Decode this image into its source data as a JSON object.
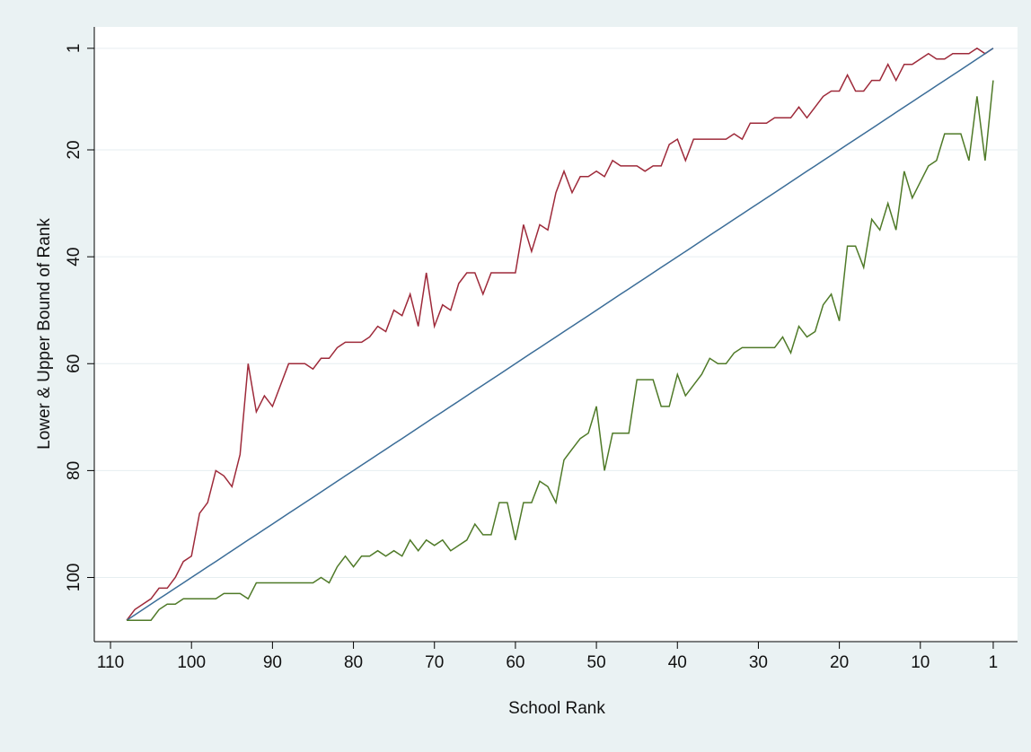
{
  "chart_data": {
    "type": "line",
    "x_label": "School Rank",
    "y_label": "Lower & Upper Bound of Rank",
    "x": [
      108,
      107,
      106,
      105,
      104,
      103,
      102,
      101,
      100,
      99,
      98,
      97,
      96,
      95,
      94,
      93,
      92,
      91,
      90,
      89,
      88,
      87,
      86,
      85,
      84,
      83,
      82,
      81,
      80,
      79,
      78,
      77,
      76,
      75,
      74,
      73,
      72,
      71,
      70,
      69,
      68,
      67,
      66,
      65,
      64,
      63,
      62,
      61,
      60,
      59,
      58,
      57,
      56,
      55,
      54,
      53,
      52,
      51,
      50,
      49,
      48,
      47,
      46,
      45,
      44,
      43,
      42,
      41,
      40,
      39,
      38,
      37,
      36,
      35,
      34,
      33,
      32,
      31,
      30,
      29,
      28,
      27,
      26,
      25,
      24,
      23,
      22,
      21,
      20,
      19,
      18,
      17,
      16,
      15,
      14,
      13,
      12,
      11,
      10,
      9,
      8,
      7,
      6,
      5,
      4,
      3,
      2,
      1
    ],
    "series": [
      {
        "color": "#9e2a3a",
        "values": [
          108,
          106,
          105,
          104,
          102,
          102,
          100,
          97,
          96,
          88,
          86,
          80,
          81,
          83,
          77,
          60,
          69,
          66,
          68,
          64,
          60,
          60,
          60,
          61,
          59,
          59,
          57,
          56,
          56,
          56,
          55,
          53,
          54,
          50,
          51,
          47,
          53,
          43,
          53,
          49,
          50,
          45,
          43,
          43,
          47,
          43,
          43,
          43,
          43,
          34,
          39,
          34,
          35,
          28,
          24,
          28,
          25,
          25,
          24,
          25,
          22,
          23,
          23,
          23,
          24,
          23,
          23,
          19,
          18,
          22,
          18,
          18,
          18,
          18,
          18,
          17,
          18,
          15,
          15,
          15,
          14,
          14,
          14,
          12,
          14,
          12,
          10,
          9,
          9,
          6,
          9,
          9,
          7,
          7,
          4,
          7,
          4,
          4,
          3,
          2,
          3,
          3,
          2,
          2,
          2,
          1,
          2,
          1
        ]
      },
      {
        "color": "#3b6d98",
        "values": [
          108,
          107,
          106,
          105,
          104,
          103,
          102,
          101,
          100,
          99,
          98,
          97,
          96,
          95,
          94,
          93,
          92,
          91,
          90,
          89,
          88,
          87,
          86,
          85,
          84,
          83,
          82,
          81,
          80,
          79,
          78,
          77,
          76,
          75,
          74,
          73,
          72,
          71,
          70,
          69,
          68,
          67,
          66,
          65,
          64,
          63,
          62,
          61,
          60,
          59,
          58,
          57,
          56,
          55,
          54,
          53,
          52,
          51,
          50,
          49,
          48,
          47,
          46,
          45,
          44,
          43,
          42,
          41,
          40,
          39,
          38,
          37,
          36,
          35,
          34,
          33,
          32,
          31,
          30,
          29,
          28,
          27,
          26,
          25,
          24,
          23,
          22,
          21,
          20,
          19,
          18,
          17,
          16,
          15,
          14,
          13,
          12,
          11,
          10,
          9,
          8,
          7,
          6,
          5,
          4,
          3,
          2,
          1
        ]
      },
      {
        "color": "#4f7a28",
        "values": [
          108,
          108,
          108,
          108,
          106,
          105,
          105,
          104,
          104,
          104,
          104,
          104,
          103,
          103,
          103,
          104,
          101,
          101,
          101,
          101,
          101,
          101,
          101,
          101,
          100,
          101,
          98,
          96,
          98,
          96,
          96,
          95,
          96,
          95,
          96,
          93,
          95,
          93,
          94,
          93,
          95,
          94,
          93,
          90,
          92,
          92,
          86,
          86,
          93,
          86,
          86,
          82,
          83,
          86,
          78,
          76,
          74,
          73,
          68,
          80,
          73,
          73,
          73,
          63,
          63,
          63,
          68,
          68,
          62,
          66,
          64,
          62,
          59,
          60,
          60,
          58,
          57,
          57,
          57,
          57,
          57,
          55,
          58,
          53,
          55,
          54,
          49,
          47,
          52,
          38,
          38,
          42,
          33,
          35,
          30,
          35,
          24,
          29,
          26,
          23,
          22,
          17,
          17,
          17,
          22,
          10,
          22,
          7
        ]
      }
    ],
    "xlim": [
      112,
      -2
    ],
    "xticks": [
      110,
      100,
      90,
      80,
      70,
      60,
      50,
      40,
      30,
      20,
      10,
      1
    ],
    "ylim": [
      -3,
      112
    ],
    "yticks": [
      1,
      20,
      40,
      60,
      80,
      100
    ],
    "y_reversed": true,
    "grid": true
  }
}
